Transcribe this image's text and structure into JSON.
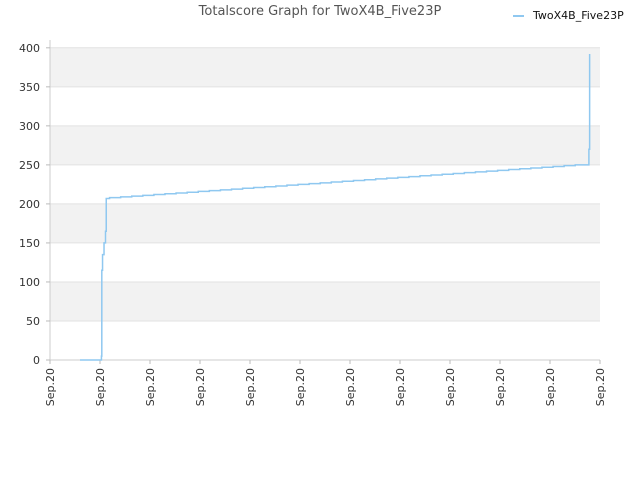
{
  "chart_data": {
    "type": "line",
    "title": "Totalscore Graph for TwoX4B_Five23P",
    "xlabel": "",
    "ylabel": "",
    "ylim": [
      0,
      410
    ],
    "y_ticks": [
      "0",
      "50",
      "100",
      "150",
      "200",
      "250",
      "300",
      "350",
      "400"
    ],
    "x_ticks": [
      "Sep.20",
      "Sep.20",
      "Sep.20",
      "Sep.20",
      "Sep.20",
      "Sep.20",
      "Sep.20",
      "Sep.20",
      "Sep.20",
      "Sep.20",
      "Sep.20",
      "Sep.20"
    ],
    "grid": true,
    "legend": "top-right",
    "series": [
      {
        "name": "TwoX4B_Five23P",
        "color": "#8fc8f0",
        "step": true,
        "points": [
          [
            0.0,
            0
          ],
          [
            0.055,
            0
          ],
          [
            0.058,
            5
          ],
          [
            0.059,
            115
          ],
          [
            0.061,
            135
          ],
          [
            0.065,
            150
          ],
          [
            0.069,
            165
          ],
          [
            0.071,
            207
          ],
          [
            0.08,
            208
          ],
          [
            0.11,
            209
          ],
          [
            0.14,
            210
          ],
          [
            0.17,
            211
          ],
          [
            0.2,
            212
          ],
          [
            0.23,
            213
          ],
          [
            0.26,
            214
          ],
          [
            0.29,
            215
          ],
          [
            0.32,
            216
          ],
          [
            0.35,
            217
          ],
          [
            0.38,
            218
          ],
          [
            0.41,
            219
          ],
          [
            0.44,
            220
          ],
          [
            0.47,
            221
          ],
          [
            0.5,
            222
          ],
          [
            0.53,
            223
          ],
          [
            0.56,
            224
          ],
          [
            0.59,
            225
          ],
          [
            0.62,
            226
          ],
          [
            0.65,
            227
          ],
          [
            0.68,
            228
          ],
          [
            0.71,
            229
          ],
          [
            0.74,
            230
          ],
          [
            0.77,
            231
          ],
          [
            0.8,
            232
          ],
          [
            0.83,
            233
          ],
          [
            0.86,
            234
          ],
          [
            0.89,
            235
          ],
          [
            0.92,
            236
          ],
          [
            0.95,
            237
          ],
          [
            0.98,
            238
          ],
          [
            1.01,
            239
          ],
          [
            1.04,
            240
          ],
          [
            1.07,
            241
          ],
          [
            1.1,
            242
          ],
          [
            1.13,
            243
          ],
          [
            1.16,
            244
          ],
          [
            1.19,
            245
          ],
          [
            1.22,
            246
          ],
          [
            1.25,
            247
          ],
          [
            1.28,
            248
          ],
          [
            1.31,
            249
          ],
          [
            1.34,
            250
          ],
          [
            1.375,
            250
          ],
          [
            1.377,
            270
          ],
          [
            1.379,
            392
          ]
        ],
        "x_min": 0,
        "x_max": 1.38
      }
    ]
  }
}
